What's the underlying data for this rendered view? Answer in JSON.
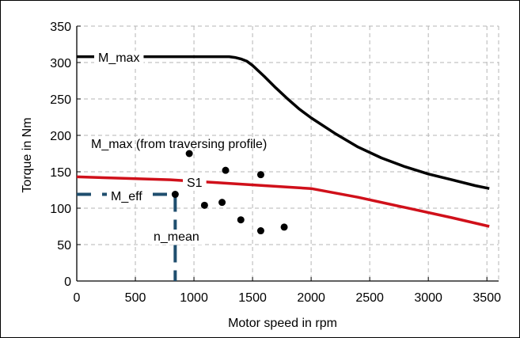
{
  "chart_data": {
    "type": "line",
    "xlabel": "Motor speed in rpm",
    "ylabel": "Torque in Nm",
    "xlim": [
      0,
      3600
    ],
    "ylim": [
      0,
      350
    ],
    "x_ticks": [
      0,
      500,
      1000,
      1500,
      2000,
      2500,
      3000,
      3500
    ],
    "y_ticks": [
      0,
      50,
      100,
      150,
      200,
      250,
      300,
      350
    ],
    "grid": true,
    "colors": {
      "m_max": "#000000",
      "s1": "#d0101a",
      "points": "#000000",
      "marker": "#1f4e6e"
    },
    "series": [
      {
        "key": "m_max",
        "name": "M_max",
        "x": [
          0,
          1300,
          1350,
          1400,
          1450,
          1500,
          1600,
          1700,
          1800,
          1900,
          2000,
          2200,
          2400,
          2600,
          2800,
          3000,
          3200,
          3400,
          3520
        ],
        "y": [
          308,
          308,
          307,
          305,
          302,
          296,
          281,
          265,
          250,
          236,
          224,
          203,
          184,
          169,
          157,
          147,
          139,
          131,
          127
        ]
      },
      {
        "key": "s1",
        "name": "S1",
        "x": [
          0,
          400,
          800,
          1200,
          1600,
          2000,
          2400,
          2800,
          3200,
          3520
        ],
        "y": [
          143,
          141,
          139,
          135,
          131,
          127,
          115,
          101,
          87,
          75
        ]
      }
    ],
    "points": {
      "name": "M_max (from traversing profile)",
      "x": [
        960,
        1270,
        1570,
        840,
        1090,
        1240,
        1400,
        1570,
        1770
      ],
      "y": [
        175,
        152,
        146,
        119,
        104,
        108,
        84,
        69,
        74
      ]
    },
    "markers": {
      "m_eff_label": "M_eff",
      "m_eff_value": 119,
      "n_mean_label": "n_mean",
      "n_mean_value": 840
    },
    "annotations": {
      "m_max": "M_max",
      "traversing": "M_max (from traversing profile)",
      "s1": "S1"
    }
  }
}
